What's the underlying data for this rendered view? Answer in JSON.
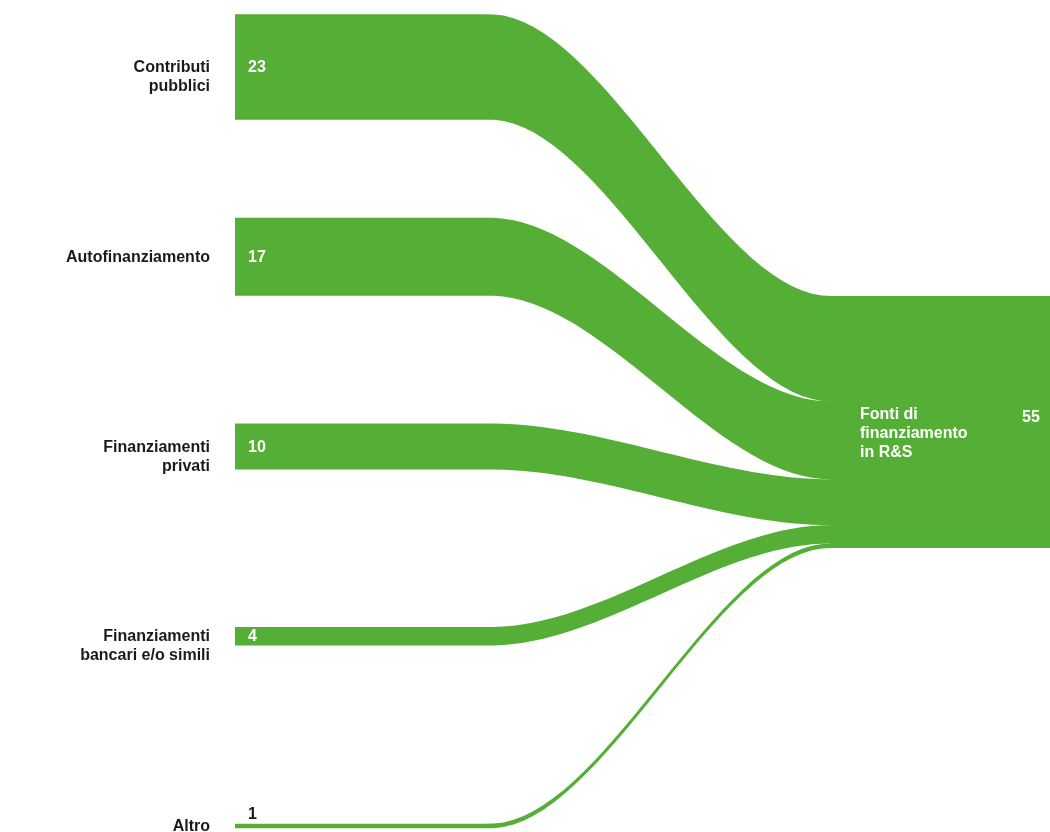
{
  "chart_data": {
    "type": "other",
    "categories": [
      "Contributi pubblici",
      "Autofinanziamento",
      "Finanziamenti privati",
      "Finanziamenti bancari e/o simili",
      "Altro",
      "Fonti di finanziamento in R&S"
    ],
    "values": [
      23,
      17,
      10,
      4,
      1,
      55
    ],
    "data_labels": true,
    "colors": [
      "#55ae35",
      "#55ae35",
      "#55ae35",
      "#55ae35",
      "#55ae35",
      "#55ae35"
    ]
  }
}
